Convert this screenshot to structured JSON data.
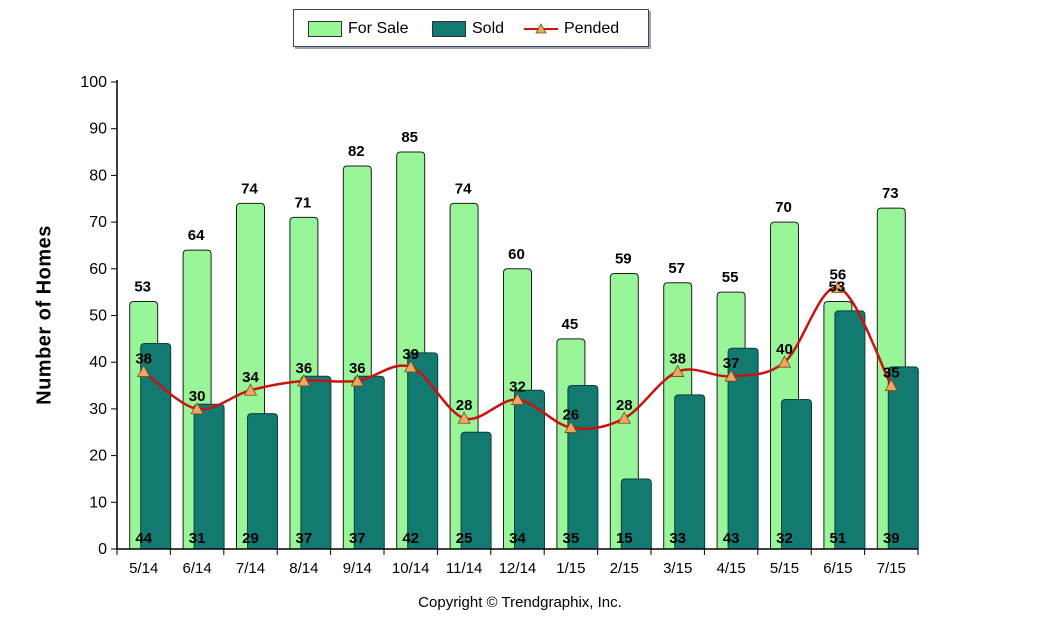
{
  "legend": {
    "for_sale": "For Sale",
    "sold": "Sold",
    "pended": "Pended"
  },
  "copyright": "Copyright © Trendgraphix, Inc.",
  "chart_data": {
    "type": "bar",
    "title": "",
    "xlabel": "",
    "ylabel": "Number of Homes",
    "ylim": [
      0,
      100
    ],
    "yticks": [
      0,
      10,
      20,
      30,
      40,
      50,
      60,
      70,
      80,
      90,
      100
    ],
    "categories": [
      "5/14",
      "6/14",
      "7/14",
      "8/14",
      "9/14",
      "10/14",
      "11/14",
      "12/14",
      "1/15",
      "2/15",
      "3/15",
      "4/15",
      "5/15",
      "6/15",
      "7/15"
    ],
    "series": [
      {
        "name": "For Sale",
        "kind": "bar",
        "color": "#98f598",
        "values": [
          53,
          64,
          74,
          71,
          82,
          85,
          74,
          60,
          45,
          59,
          57,
          55,
          70,
          53,
          73
        ]
      },
      {
        "name": "Sold",
        "kind": "bar",
        "color": "#137a72",
        "values": [
          44,
          31,
          29,
          37,
          37,
          42,
          25,
          34,
          35,
          15,
          33,
          43,
          32,
          51,
          39
        ]
      },
      {
        "name": "Pended",
        "kind": "line",
        "color": "#cc1111",
        "marker_color": "#f0a860",
        "values": [
          38,
          30,
          34,
          36,
          36,
          39,
          28,
          32,
          26,
          28,
          38,
          37,
          40,
          56,
          35
        ]
      }
    ],
    "legend_position": "top-center",
    "grid": false
  }
}
